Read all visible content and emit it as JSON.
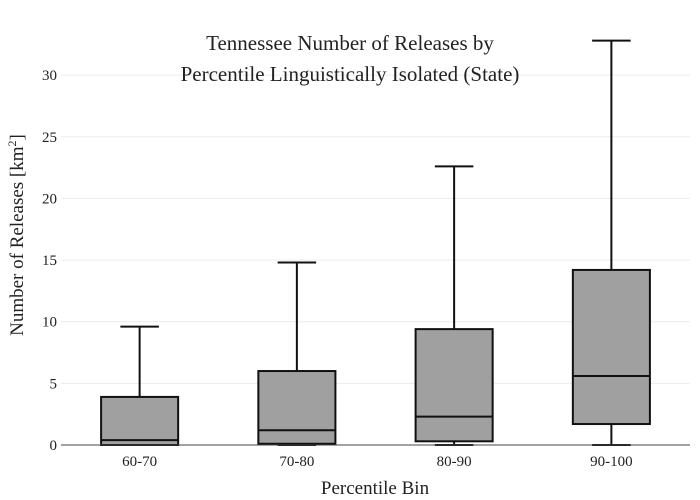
{
  "chart_data": {
    "type": "box",
    "title_lines": [
      "Tennessee Number of Releases by",
      "Percentile Linguistically Isolated (State)"
    ],
    "xlabel": "Percentile Bin",
    "ylabel_main": "Number of Releases  [km",
    "ylabel_sup": "2",
    "ylabel_end": "]",
    "ylim": [
      0,
      33.5
    ],
    "yticks": [
      0,
      5,
      10,
      15,
      20,
      25,
      30
    ],
    "grid": true,
    "categories": [
      "60-70",
      "70-80",
      "80-90",
      "90-100"
    ],
    "boxes": [
      {
        "category": "60-70",
        "min": 0,
        "q1": 0,
        "median": 0.4,
        "q3": 3.9,
        "max": 9.6
      },
      {
        "category": "70-80",
        "min": 0,
        "q1": 0.1,
        "median": 1.2,
        "q3": 6.0,
        "max": 14.8
      },
      {
        "category": "80-90",
        "min": 0,
        "q1": 0.3,
        "median": 2.3,
        "q3": 9.4,
        "max": 22.6
      },
      {
        "category": "90-100",
        "min": 0,
        "q1": 1.7,
        "median": 5.6,
        "q3": 14.2,
        "max": 32.8
      }
    ]
  }
}
